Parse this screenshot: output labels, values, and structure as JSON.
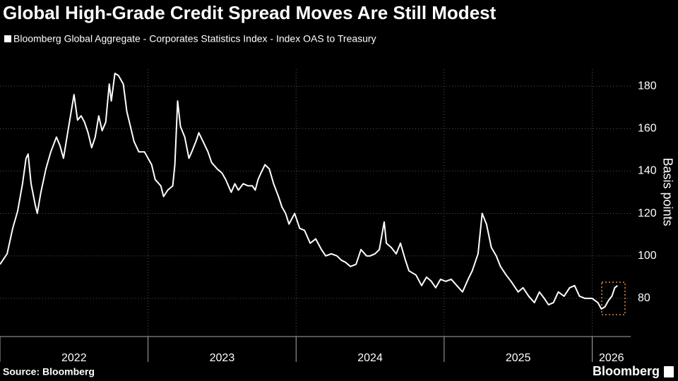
{
  "chart_data": {
    "type": "line",
    "title": "Global High-Grade Credit Spread Moves Are Still Modest",
    "y_label": "Basis points",
    "source": "Source: Bloomberg",
    "brand": "Bloomberg",
    "x": [
      2022.0,
      2022.048,
      2022.086,
      2022.119,
      2022.152,
      2022.176,
      2022.19,
      2022.21,
      2022.238,
      2022.252,
      2022.276,
      2022.31,
      2022.343,
      2022.381,
      2022.405,
      2022.429,
      2022.452,
      2022.476,
      2022.5,
      2022.524,
      2022.548,
      2022.571,
      2022.595,
      2022.619,
      2022.643,
      2022.667,
      2022.69,
      2022.714,
      2022.738,
      2022.752,
      2022.776,
      2022.8,
      2022.833,
      2022.857,
      2022.881,
      2022.905,
      2022.938,
      2022.976,
      2023.0,
      2023.024,
      2023.048,
      2023.086,
      2023.105,
      2023.133,
      2023.167,
      2023.181,
      2023.2,
      2023.219,
      2023.248,
      2023.276,
      2023.295,
      2023.324,
      2023.343,
      2023.371,
      2023.405,
      2023.429,
      2023.467,
      2023.5,
      2023.524,
      2023.562,
      2023.586,
      2023.61,
      2023.643,
      2023.676,
      2023.705,
      2023.724,
      2023.743,
      2023.762,
      2023.79,
      2023.819,
      2023.848,
      2023.881,
      2023.905,
      2023.929,
      2023.952,
      2023.99,
      2024.024,
      2024.057,
      2024.095,
      2024.133,
      2024.171,
      2024.2,
      2024.238,
      2024.276,
      2024.305,
      2024.333,
      2024.367,
      2024.405,
      2024.438,
      2024.476,
      2024.5,
      2024.533,
      2024.562,
      2024.595,
      2024.61,
      2024.643,
      2024.676,
      2024.705,
      2024.738,
      2024.762,
      2024.81,
      2024.848,
      2024.881,
      2024.914,
      2024.943,
      2024.976,
      2025.01,
      2025.048,
      2025.086,
      2025.124,
      2025.162,
      2025.19,
      2025.229,
      2025.257,
      2025.286,
      2025.319,
      2025.352,
      2025.381,
      2025.419,
      2025.452,
      2025.5,
      2025.533,
      2025.571,
      2025.61,
      2025.643,
      2025.676,
      2025.705,
      2025.738,
      2025.771,
      2025.81,
      2025.848,
      2025.881,
      2025.914,
      2025.952,
      2026.0,
      2026.038,
      2026.062,
      2026.086,
      2026.11,
      2026.133,
      2026.152,
      2026.171
    ],
    "series": [
      {
        "name": "Bloomberg Global Aggregate - Corporates Statistics Index - Index OAS to Treasury",
        "color": "#ffffff",
        "values": [
          96,
          101,
          113,
          121,
          134,
          146,
          148,
          134,
          124,
          120,
          130,
          141,
          149,
          156,
          152,
          146,
          156,
          166,
          176,
          164,
          166,
          163,
          158,
          151,
          156,
          166,
          159,
          163,
          181,
          173,
          186,
          185,
          181,
          168,
          161,
          154,
          149,
          149,
          146,
          143,
          136,
          133,
          128,
          131,
          133,
          143,
          173,
          161,
          156,
          146,
          149,
          154,
          158,
          154,
          149,
          144,
          141,
          139,
          136,
          130,
          134,
          131,
          134,
          133,
          133,
          131,
          136,
          139,
          143,
          141,
          134,
          128,
          123,
          120,
          115,
          120,
          113,
          112,
          106,
          108,
          103,
          100,
          101,
          100,
          98,
          97,
          95,
          96,
          103,
          100,
          100,
          101,
          103,
          116,
          106,
          104,
          101,
          106,
          98,
          93,
          91,
          86,
          90,
          88,
          85,
          89,
          88,
          89,
          86,
          83,
          89,
          93,
          101,
          120,
          115,
          104,
          100,
          95,
          91,
          88,
          83,
          85,
          81,
          78,
          83,
          80,
          77,
          78,
          83,
          81,
          85,
          86,
          81,
          80,
          80,
          78,
          75,
          76,
          79,
          81,
          85,
          86
        ]
      }
    ],
    "xlim": [
      2022.0,
      2026.26
    ],
    "xticks": [
      2022,
      2023,
      2024,
      2025,
      2026
    ],
    "ylim": [
      62,
      188
    ],
    "yticks": [
      80,
      100,
      120,
      140,
      160,
      180
    ],
    "grid": true
  }
}
